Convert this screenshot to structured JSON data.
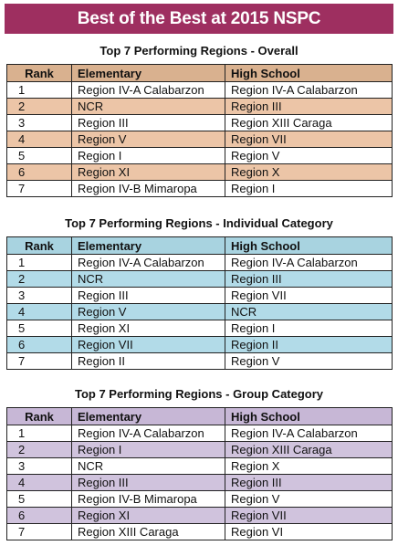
{
  "title": "Best of the Best at 2015 NSPC",
  "headers": {
    "rank": "Rank",
    "elementary": "Elementary",
    "high_school": "High School"
  },
  "tables": [
    {
      "heading": "Top 7 Performing Regions - Overall",
      "rows": [
        {
          "rank": "1",
          "elementary": "Region IV-A Calabarzon",
          "high_school": "Region IV-A Calabarzon"
        },
        {
          "rank": "2",
          "elementary": "NCR",
          "high_school": "Region III"
        },
        {
          "rank": "3",
          "elementary": "Region III",
          "high_school": "Region XIII Caraga"
        },
        {
          "rank": "4",
          "elementary": "Region V",
          "high_school": "Region VII"
        },
        {
          "rank": "5",
          "elementary": "Region I",
          "high_school": "Region V"
        },
        {
          "rank": "6",
          "elementary": "Region XI",
          "high_school": "Region X"
        },
        {
          "rank": "7",
          "elementary": "Region IV-B Mimaropa",
          "high_school": "Region I"
        }
      ]
    },
    {
      "heading": "Top 7 Performing Regions - Individual Category",
      "rows": [
        {
          "rank": "1",
          "elementary": "Region IV-A Calabarzon",
          "high_school": "Region IV-A Calabarzon"
        },
        {
          "rank": "2",
          "elementary": "NCR",
          "high_school": "Region III"
        },
        {
          "rank": "3",
          "elementary": "Region III",
          "high_school": "Region VII"
        },
        {
          "rank": "4",
          "elementary": "Region V",
          "high_school": "NCR"
        },
        {
          "rank": "5",
          "elementary": "Region XI",
          "high_school": "Region I"
        },
        {
          "rank": "6",
          "elementary": "Region VII",
          "high_school": "Region II"
        },
        {
          "rank": "7",
          "elementary": "Region II",
          "high_school": "Region V"
        }
      ]
    },
    {
      "heading": "Top 7 Performing Regions - Group Category",
      "rows": [
        {
          "rank": "1",
          "elementary": "Region IV-A Calabarzon",
          "high_school": "Region IV-A Calabarzon"
        },
        {
          "rank": "2",
          "elementary": "Region I",
          "high_school": "Region XIII Caraga"
        },
        {
          "rank": "3",
          "elementary": "NCR",
          "high_school": "Region X"
        },
        {
          "rank": "4",
          "elementary": "Region III",
          "high_school": "Region III"
        },
        {
          "rank": "5",
          "elementary": "Region IV-B Mimaropa",
          "high_school": "Region V"
        },
        {
          "rank": "6",
          "elementary": "Region XI",
          "high_school": "Region VII"
        },
        {
          "rank": "7",
          "elementary": "Region XIII Caraga",
          "high_school": "Region VI"
        }
      ]
    }
  ],
  "colors": {
    "banner": "#9e2f60",
    "overall_shade": "#ecc5a7",
    "individual_shade": "#b2dbe8",
    "group_shade": "#d0c3dd"
  }
}
